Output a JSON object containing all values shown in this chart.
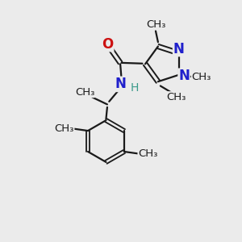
{
  "background_color": "#ebebeb",
  "bond_color": "#1a1a1a",
  "nitrogen_color": "#2020cc",
  "oxygen_color": "#cc1111",
  "teal_color": "#3a9a8a",
  "figsize": [
    3.0,
    3.0
  ],
  "dpi": 100,
  "xlim": [
    0,
    10
  ],
  "ylim": [
    0,
    10
  ]
}
